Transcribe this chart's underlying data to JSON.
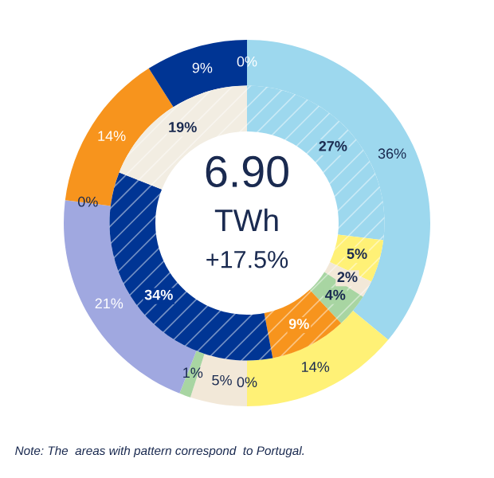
{
  "chart_data": {
    "type": "donut",
    "categories": [
      null,
      null,
      null,
      null,
      null,
      null,
      null,
      null,
      null,
      null
    ],
    "series": [
      {
        "values": [
          36,
          14,
          0,
          5,
          1,
          21,
          0,
          14,
          9,
          0
        ],
        "colors": [
          "#9dd8ee",
          "#fff176",
          "#f2c500",
          "#f2e8d8",
          "#a8d5a2",
          "#a0a8e0",
          "#c8c8c8",
          "#f7941d",
          "#003594",
          "#1c2f6e"
        ],
        "value_labels": [
          "36%",
          "14%",
          "0%",
          "5%",
          "1%",
          "21%",
          "0%",
          "14%",
          "9%",
          "0%"
        ]
      },
      {
        "values": [
          27,
          5,
          2,
          4,
          9,
          34,
          19,
          null,
          null,
          null
        ],
        "colors": [
          "#9dd8ee",
          "#fff176",
          "#f2e8d8",
          "#a8d5a2",
          "#f7941d",
          "#003594",
          "#f2ede2",
          null,
          null,
          null
        ],
        "value_labels": [
          "27%",
          "5%",
          "2%",
          "4%",
          "9%",
          "34%",
          "19%",
          null,
          null,
          null
        ]
      }
    ],
    "title": "6.90",
    "subtitle": "TWh",
    "annotations": [
      "+17.5%",
      "Note: The  areas with pattern correspond  to Portugal."
    ]
  }
}
